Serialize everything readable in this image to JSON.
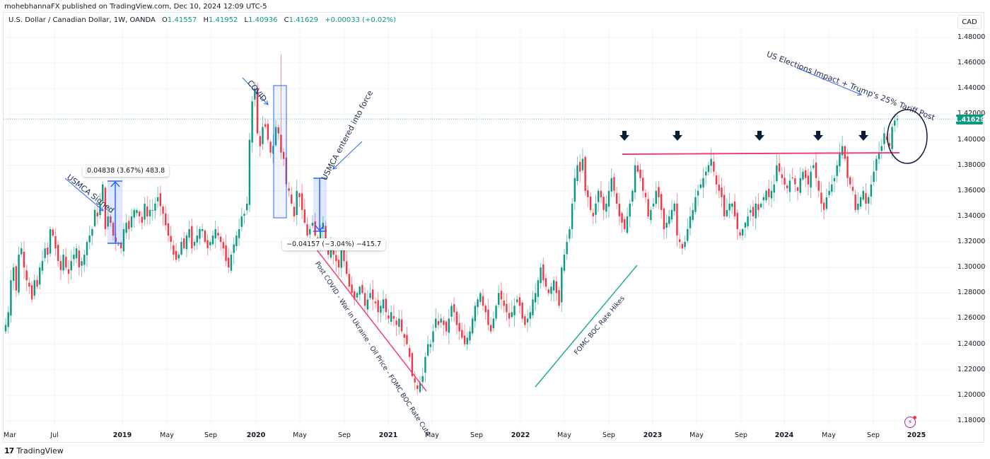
{
  "header": {
    "publisher_line": "mohebhannaFX published on TradingView.com, Dec 10, 2024 12:09 UTC-5"
  },
  "legend": {
    "symbol": "U.S. Dollar / Canadian Dollar, 1W, OANDA",
    "open_label": "O",
    "open": "1.41557",
    "high_label": "H",
    "high": "1.41952",
    "low_label": "L",
    "low": "1.40936",
    "close_label": "C",
    "close": "1.41629",
    "change": "+0.00033 (+0.02%)"
  },
  "price_axis": {
    "currency": "CAD",
    "current_price": "1.41629",
    "ticks": [
      "1.48000",
      "1.46000",
      "1.44000",
      "1.42000",
      "1.40000",
      "1.38000",
      "1.36000",
      "1.34000",
      "1.32000",
      "1.30000",
      "1.28000",
      "1.26000",
      "1.24000",
      "1.22000",
      "1.20000",
      "1.18000"
    ]
  },
  "time_axis": {
    "ticks": [
      {
        "label": "Mar",
        "x": 14,
        "year": false
      },
      {
        "label": "Jul",
        "x": 77,
        "year": false
      },
      {
        "label": "2019",
        "x": 173,
        "year": true
      },
      {
        "label": "May",
        "x": 236,
        "year": false
      },
      {
        "label": "Sep",
        "x": 298,
        "year": false
      },
      {
        "label": "2020",
        "x": 362,
        "year": true
      },
      {
        "label": "May",
        "x": 424,
        "year": false
      },
      {
        "label": "Sep",
        "x": 487,
        "year": false
      },
      {
        "label": "2021",
        "x": 549,
        "year": true
      },
      {
        "label": "May",
        "x": 611,
        "year": false
      },
      {
        "label": "Sep",
        "x": 674,
        "year": false
      },
      {
        "label": "2022",
        "x": 736,
        "year": true
      },
      {
        "label": "May",
        "x": 798,
        "year": false
      },
      {
        "label": "Sep",
        "x": 861,
        "year": false
      },
      {
        "label": "2023",
        "x": 923,
        "year": true
      },
      {
        "label": "May",
        "x": 985,
        "year": false
      },
      {
        "label": "Sep",
        "x": 1048,
        "year": false
      },
      {
        "label": "2024",
        "x": 1109,
        "year": true
      },
      {
        "label": "May",
        "x": 1172,
        "year": false
      },
      {
        "label": "Sep",
        "x": 1235,
        "year": false
      },
      {
        "label": "2025",
        "x": 1296,
        "year": true
      }
    ]
  },
  "annotations": {
    "usmca_signed": "USMCA Signed",
    "covid": "COVID",
    "usmca_force": "USMCA entered into force",
    "post_covid": "Post COVID - War in Ukraine - Oil Price - FOMC BOC Rate Cuts",
    "rate_hikes": "FOMC BOC Rate Hikes",
    "us_elections": "US Elections Impact + Trump's 25% Tariff Post",
    "measure_up": "0.04838 (3.67%) 483.8",
    "measure_down": "−0.04157 (−3.04%) −415.7"
  },
  "branding": {
    "logo_mark": "17",
    "logo_text": "TradingView"
  },
  "colors": {
    "up": "#089981",
    "down": "#f23645",
    "resistance": "#f23f74",
    "measure": "#2962ff",
    "arrow": "#0d1b3e",
    "grid": "#f0f3fa"
  },
  "chart_data": {
    "type": "candlestick",
    "title": "U.S. Dollar / Canadian Dollar, 1W, OANDA",
    "xlabel": "",
    "ylabel": "CAD",
    "ylim": [
      1.17,
      1.49
    ],
    "grid": true,
    "last": {
      "open": 1.41557,
      "high": 1.41952,
      "low": 1.40936,
      "close": 1.41629
    },
    "resistance_level": 1.389,
    "key_points": [
      {
        "date": "2018-03",
        "price": 1.29
      },
      {
        "date": "2018-10 (USMCA Signed)",
        "price": 1.3,
        "move": "+0.04838 (+3.67%)"
      },
      {
        "date": "2019-05",
        "price": 1.355
      },
      {
        "date": "2020-03 (COVID high)",
        "price": 1.467
      },
      {
        "date": "2020-07 (USMCA in force)",
        "price": 1.37,
        "move": "-0.04157 (-3.04%)"
      },
      {
        "date": "2021-05 low",
        "price": 1.201
      },
      {
        "date": "2022-10 high",
        "price": 1.39
      },
      {
        "date": "2023-03",
        "price": 1.385
      },
      {
        "date": "2023-10",
        "price": 1.39
      },
      {
        "date": "2024-04",
        "price": 1.385
      },
      {
        "date": "2024-08",
        "price": 1.395
      },
      {
        "date": "2024-12",
        "price": 1.41629
      }
    ],
    "weekly_closes": [
      1.255,
      1.265,
      1.29,
      1.3,
      1.282,
      1.31,
      1.315,
      1.3,
      1.29,
      1.285,
      1.275,
      1.29,
      1.285,
      1.3,
      1.305,
      1.315,
      1.31,
      1.33,
      1.325,
      1.315,
      1.305,
      1.298,
      1.31,
      1.3,
      1.295,
      1.305,
      1.31,
      1.315,
      1.3,
      1.305,
      1.31,
      1.32,
      1.325,
      1.33,
      1.345,
      1.34,
      1.35,
      1.365,
      1.33,
      1.34,
      1.335,
      1.325,
      1.32,
      1.318,
      1.315,
      1.33,
      1.335,
      1.33,
      1.34,
      1.345,
      1.345,
      1.34,
      1.335,
      1.35,
      1.34,
      1.345,
      1.345,
      1.35,
      1.355,
      1.348,
      1.342,
      1.333,
      1.325,
      1.32,
      1.31,
      1.306,
      1.31,
      1.32,
      1.315,
      1.325,
      1.33,
      1.315,
      1.32,
      1.325,
      1.33,
      1.33,
      1.32,
      1.315,
      1.32,
      1.325,
      1.33,
      1.325,
      1.32,
      1.315,
      1.305,
      1.3,
      1.31,
      1.318,
      1.325,
      1.33,
      1.34,
      1.342,
      1.35,
      1.4,
      1.43,
      1.44,
      1.405,
      1.395,
      1.41,
      1.41,
      1.4,
      1.39,
      1.395,
      1.41,
      1.405,
      1.39,
      1.385,
      1.365,
      1.36,
      1.35,
      1.34,
      1.36,
      1.355,
      1.345,
      1.335,
      1.325,
      1.33,
      1.335,
      1.325,
      1.32,
      1.33,
      1.335,
      1.32,
      1.31,
      1.32,
      1.31,
      1.305,
      1.3,
      1.315,
      1.305,
      1.295,
      1.285,
      1.28,
      1.275,
      1.28,
      1.285,
      1.28,
      1.27,
      1.275,
      1.28,
      1.275,
      1.272,
      1.265,
      1.27,
      1.275,
      1.265,
      1.26,
      1.265,
      1.26,
      1.255,
      1.26,
      1.25,
      1.245,
      1.24,
      1.23,
      1.215,
      1.21,
      1.205,
      1.21,
      1.215,
      1.23,
      1.24,
      1.24,
      1.25,
      1.26,
      1.255,
      1.26,
      1.255,
      1.25,
      1.26,
      1.27,
      1.265,
      1.255,
      1.25,
      1.245,
      1.24,
      1.245,
      1.25,
      1.26,
      1.27,
      1.275,
      1.28,
      1.27,
      1.265,
      1.255,
      1.25,
      1.26,
      1.27,
      1.28,
      1.275,
      1.27,
      1.265,
      1.26,
      1.265,
      1.27,
      1.275,
      1.27,
      1.26,
      1.255,
      1.26,
      1.265,
      1.275,
      1.28,
      1.29,
      1.3,
      1.29,
      1.285,
      1.28,
      1.285,
      1.29,
      1.28,
      1.27,
      1.3,
      1.31,
      1.32,
      1.33,
      1.35,
      1.37,
      1.38,
      1.375,
      1.385,
      1.36,
      1.355,
      1.345,
      1.34,
      1.35,
      1.36,
      1.355,
      1.345,
      1.35,
      1.36,
      1.37,
      1.36,
      1.35,
      1.34,
      1.335,
      1.33,
      1.34,
      1.35,
      1.36,
      1.38,
      1.375,
      1.37,
      1.36,
      1.355,
      1.34,
      1.345,
      1.35,
      1.36,
      1.355,
      1.345,
      1.33,
      1.335,
      1.34,
      1.345,
      1.35,
      1.325,
      1.32,
      1.315,
      1.32,
      1.33,
      1.34,
      1.345,
      1.355,
      1.36,
      1.365,
      1.37,
      1.375,
      1.38,
      1.385,
      1.375,
      1.365,
      1.36,
      1.355,
      1.34,
      1.345,
      1.35,
      1.35,
      1.34,
      1.33,
      1.325,
      1.33,
      1.335,
      1.34,
      1.345,
      1.34,
      1.35,
      1.345,
      1.35,
      1.355,
      1.36,
      1.355,
      1.36,
      1.365,
      1.38,
      1.375,
      1.37,
      1.365,
      1.362,
      1.368,
      1.37,
      1.365,
      1.36,
      1.37,
      1.375,
      1.37,
      1.365,
      1.375,
      1.38,
      1.37,
      1.36,
      1.35,
      1.345,
      1.355,
      1.36,
      1.365,
      1.37,
      1.38,
      1.39,
      1.395,
      1.385,
      1.37,
      1.365,
      1.36,
      1.345,
      1.35,
      1.355,
      1.36,
      1.35,
      1.355,
      1.365,
      1.375,
      1.385,
      1.39,
      1.395,
      1.405,
      1.4,
      1.395,
      1.41,
      1.415,
      1.41629
    ]
  }
}
